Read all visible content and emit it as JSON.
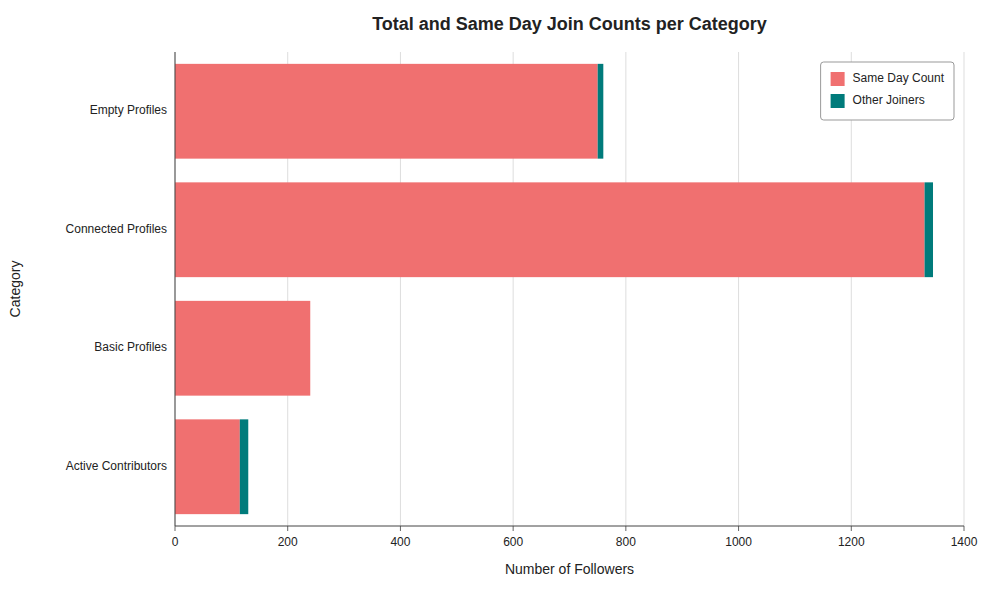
{
  "chart_data": {
    "type": "bar",
    "orientation": "horizontal",
    "stacked": true,
    "title": "Total and Same Day Join Counts per Category",
    "xlabel": "Number of Followers",
    "ylabel": "Category",
    "categories": [
      "Active Contributors",
      "Basic Profiles",
      "Connected Profiles",
      "Empty Profiles"
    ],
    "series": [
      {
        "name": "Same Day Count",
        "color": "#f07070",
        "values": [
          115,
          240,
          1330,
          750
        ]
      },
      {
        "name": "Other Joiners",
        "color": "#007b7b",
        "values": [
          15,
          0,
          15,
          10
        ]
      }
    ],
    "xlim": [
      0,
      1400
    ],
    "xticks": [
      0,
      200,
      400,
      600,
      800,
      1000,
      1200,
      1400
    ],
    "grid": true,
    "legend": "upper right"
  }
}
